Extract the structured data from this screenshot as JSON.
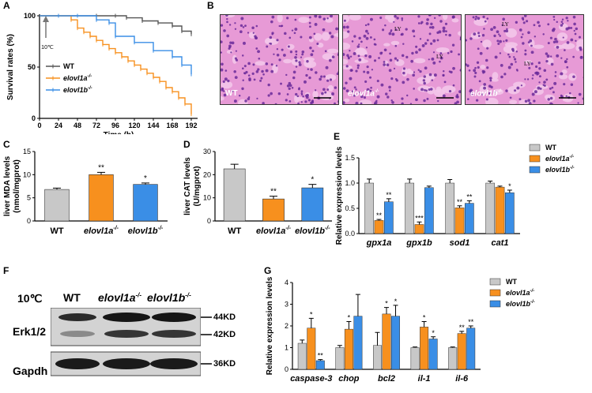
{
  "panels": {
    "A": "A",
    "B": "B",
    "C": "C",
    "D": "D",
    "E": "E",
    "F": "F",
    "G": "G"
  },
  "colors": {
    "wt": "#c8c8c8",
    "a": "#f7901e",
    "b": "#3a8ee6",
    "wt_line": "#555555",
    "tissue": "#e79ad6",
    "nuclei": "#6a2a9a"
  },
  "survival": {
    "ylabel": "Survival rates (%)",
    "xlabel": "Time (h)",
    "arrow_label": "10℃",
    "legend": [
      {
        "key": "wt",
        "label": "WT"
      },
      {
        "key": "a",
        "label": "elovl1a",
        "sup": "-/-"
      },
      {
        "key": "b",
        "label": "elovl1b",
        "sup": "-/-"
      }
    ],
    "xticks": [
      "0",
      "24",
      "48",
      "72",
      "96",
      "120",
      "144",
      "168",
      "192"
    ],
    "yticks": [
      "0",
      "50",
      "100"
    ],
    "chart_data": {
      "type": "line",
      "xlim": [
        0,
        200
      ],
      "ylim": [
        0,
        100
      ],
      "series": [
        {
          "name": "WT",
          "key": "wt",
          "x": [
            0,
            24,
            48,
            72,
            96,
            110,
            130,
            150,
            168,
            180,
            192
          ],
          "y": [
            100,
            100,
            100,
            100,
            100,
            98,
            95,
            93,
            90,
            85,
            82
          ]
        },
        {
          "name": "elovl1a-/-",
          "key": "a",
          "x": [
            0,
            24,
            40,
            48,
            56,
            64,
            72,
            80,
            88,
            96,
            104,
            112,
            120,
            128,
            136,
            144,
            152,
            160,
            168,
            176,
            184,
            192
          ],
          "y": [
            100,
            100,
            96,
            88,
            84,
            80,
            76,
            72,
            68,
            64,
            60,
            56,
            52,
            48,
            44,
            40,
            36,
            30,
            26,
            20,
            14,
            4
          ]
        },
        {
          "name": "elovl1b-/-",
          "key": "b",
          "x": [
            0,
            24,
            48,
            72,
            88,
            96,
            120,
            144,
            168,
            180,
            192
          ],
          "y": [
            100,
            100,
            100,
            96,
            93,
            80,
            74,
            66,
            60,
            52,
            43
          ]
        }
      ]
    }
  },
  "histology": [
    {
      "label": "WT"
    },
    {
      "label": "elovl1a",
      "sup": "-/-",
      "ly": [
        "LY",
        "LY"
      ]
    },
    {
      "label": "elovl1b",
      "sup": "-/-",
      "ly": [
        "LY",
        "LY"
      ]
    }
  ],
  "mda": {
    "ylabel1": "liver MDA levels",
    "ylabel2": "(nmol/mgprot)",
    "yticks": [
      "0",
      "5",
      "10",
      "15"
    ],
    "chart_data": {
      "type": "bar",
      "categories": [
        "WT",
        "elovl1a-/-",
        "elovl1b-/-"
      ],
      "values": [
        6.8,
        10.0,
        7.9
      ],
      "errors": [
        0.3,
        0.5,
        0.3
      ],
      "sig": [
        "",
        "**",
        "*"
      ],
      "ylim": [
        0,
        15
      ]
    }
  },
  "cat": {
    "ylabel1": "liver CAT levels",
    "ylabel2": "(U/mgprot)",
    "yticks": [
      "0",
      "10",
      "20",
      "30"
    ],
    "chart_data": {
      "type": "bar",
      "categories": [
        "WT",
        "elovl1a-/-",
        "elovl1b-/-"
      ],
      "values": [
        22.5,
        9.5,
        14.3
      ],
      "errors": [
        2.0,
        1.2,
        1.5
      ],
      "sig": [
        "",
        "**",
        "*"
      ],
      "ylim": [
        0,
        30
      ]
    }
  },
  "expE": {
    "ylabel": "Relative expression levels",
    "yticks": [
      "0.0",
      "0.5",
      "1.0",
      "1.5"
    ],
    "legend": [
      {
        "key": "wt",
        "label": "WT"
      },
      {
        "key": "a",
        "label": "elovl1a",
        "sup": "-/-"
      },
      {
        "key": "b",
        "label": "elovl1b",
        "sup": "-/-"
      }
    ],
    "chart_data": {
      "type": "bar",
      "categories": [
        "gpx1a",
        "gpx1b",
        "sod1",
        "cat1"
      ],
      "ylim": [
        0,
        1.5
      ],
      "series": [
        {
          "name": "WT",
          "key": "wt",
          "values": [
            1.0,
            1.0,
            1.0,
            1.0
          ],
          "errors": [
            0.08,
            0.08,
            0.07,
            0.04
          ],
          "sig": [
            "",
            "",
            "",
            ""
          ]
        },
        {
          "name": "elovl1a-/-",
          "key": "a",
          "values": [
            0.26,
            0.18,
            0.51,
            0.92
          ],
          "errors": [
            0.02,
            0.05,
            0.04,
            0.02
          ],
          "sig": [
            "**",
            "***",
            "**",
            ""
          ]
        },
        {
          "name": "elovl1b-/-",
          "key": "b",
          "values": [
            0.63,
            0.91,
            0.6,
            0.81
          ],
          "errors": [
            0.06,
            0.03,
            0.05,
            0.05
          ],
          "sig": [
            "**",
            "",
            "**",
            "*"
          ]
        }
      ]
    }
  },
  "wb": {
    "condition": "10℃",
    "columns": [
      {
        "label": "WT"
      },
      {
        "label": "elovl1a",
        "sup": "-/-"
      },
      {
        "label": "elovl1b",
        "sup": "-/-"
      }
    ],
    "rows": [
      {
        "label": "Erk1/2"
      },
      {
        "label": "Gapdh"
      }
    ],
    "markers": [
      "44KD",
      "42KD",
      "36KD"
    ]
  },
  "expG": {
    "ylabel": "Relative expression levels",
    "yticks": [
      "0",
      "1",
      "2",
      "3",
      "4"
    ],
    "legend": [
      {
        "key": "wt",
        "label": "WT"
      },
      {
        "key": "a",
        "label": "elovl1a",
        "sup": "-/-"
      },
      {
        "key": "b",
        "label": "elovl1b",
        "sup": "-/-"
      }
    ],
    "chart_data": {
      "type": "bar",
      "categories": [
        "caspase-3",
        "chop",
        "bcl2",
        "il-1",
        "il-6"
      ],
      "ylim": [
        0,
        4
      ],
      "series": [
        {
          "name": "WT",
          "key": "wt",
          "values": [
            1.2,
            1.0,
            1.1,
            1.0,
            1.0
          ],
          "errors": [
            0.15,
            0.1,
            0.6,
            0.03,
            0.03
          ],
          "sig": [
            "",
            "",
            "",
            "",
            ""
          ]
        },
        {
          "name": "elovl1a-/-",
          "key": "a",
          "values": [
            1.9,
            1.85,
            2.55,
            1.95,
            1.65
          ],
          "errors": [
            0.45,
            0.35,
            0.3,
            0.25,
            0.1
          ],
          "sig": [
            "*",
            "*",
            "*",
            "*",
            "**"
          ]
        },
        {
          "name": "elovl1b-/-",
          "key": "b",
          "values": [
            0.4,
            2.45,
            2.45,
            1.4,
            1.9
          ],
          "errors": [
            0.05,
            1.0,
            0.5,
            0.1,
            0.1
          ],
          "sig": [
            "**",
            "",
            "*",
            "*",
            "**"
          ]
        }
      ]
    }
  }
}
